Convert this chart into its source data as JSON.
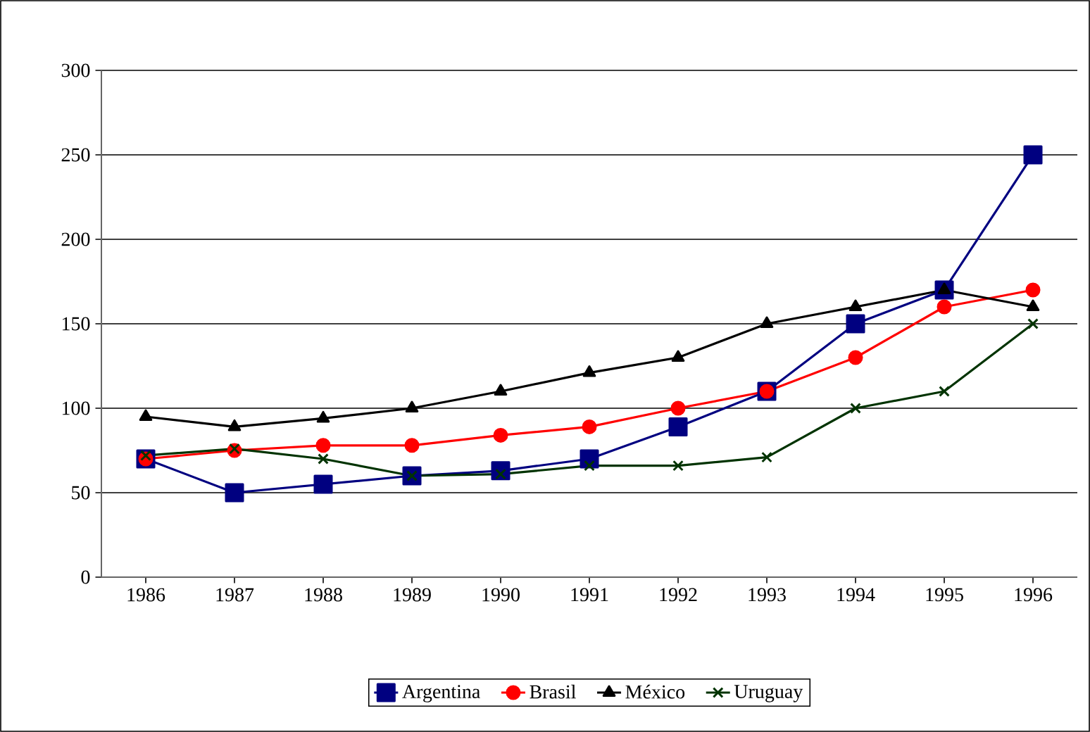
{
  "chart_data": {
    "type": "line",
    "categories": [
      "1986",
      "1987",
      "1988",
      "1989",
      "1990",
      "1991",
      "1992",
      "1993",
      "1994",
      "1995",
      "1996"
    ],
    "series": [
      {
        "name": "Argentina",
        "color": "#000080",
        "marker": "square",
        "values": [
          70,
          50,
          55,
          60,
          63,
          70,
          89,
          110,
          150,
          170,
          250
        ]
      },
      {
        "name": "Brasil",
        "color": "#ff0000",
        "marker": "circle",
        "values": [
          70,
          75,
          78,
          78,
          84,
          89,
          100,
          110,
          130,
          160,
          170
        ]
      },
      {
        "name": "México",
        "color": "#000000",
        "marker": "triangle",
        "values": [
          95,
          89,
          94,
          100,
          110,
          121,
          130,
          150,
          160,
          170,
          160
        ]
      },
      {
        "name": "Uruguay",
        "color": "#003300",
        "marker": "cross",
        "values": [
          72,
          76,
          70,
          60,
          61,
          66,
          66,
          71,
          100,
          110,
          150
        ]
      }
    ],
    "ylim": [
      0,
      300
    ],
    "yticks": [
      0,
      50,
      100,
      150,
      200,
      250,
      300
    ],
    "grid": "y",
    "legend": "bottom",
    "line_style": "solid"
  }
}
